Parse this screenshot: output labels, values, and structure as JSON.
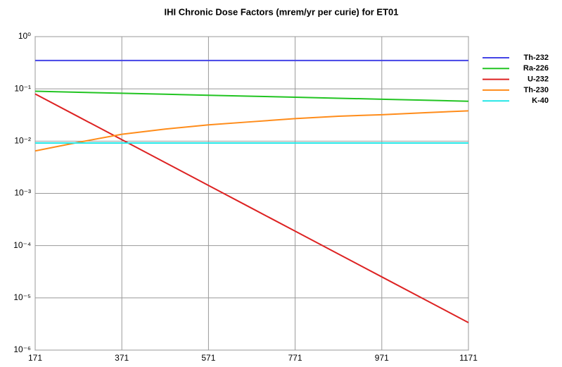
{
  "chart_data": {
    "type": "line",
    "title": "IHI Chronic Dose Factors (mrem/yr per curie) for ET01",
    "x": [
      171,
      271,
      371,
      471,
      571,
      671,
      771,
      871,
      971,
      1071,
      1171
    ],
    "series": [
      {
        "name": "Th-232",
        "color": "#4444e6",
        "values": [
          0.35,
          0.35,
          0.35,
          0.35,
          0.35,
          0.35,
          0.35,
          0.35,
          0.35,
          0.35,
          0.35
        ]
      },
      {
        "name": "Ra-226",
        "color": "#22c422",
        "values": [
          0.09,
          0.0861,
          0.0824,
          0.0789,
          0.0755,
          0.0723,
          0.0692,
          0.0662,
          0.0634,
          0.0606,
          0.058
        ]
      },
      {
        "name": "U-232",
        "color": "#dd2222",
        "values": [
          0.08,
          0.0292,
          0.01066,
          0.00389,
          0.00142,
          0.000518,
          0.000189,
          6.9e-05,
          2.52e-05,
          9.2e-06,
          3.36e-06
        ]
      },
      {
        "name": "Th-230",
        "color": "#ff8c1a",
        "values": [
          0.0065,
          0.0095,
          0.0135,
          0.017,
          0.0205,
          0.0235,
          0.027,
          0.03,
          0.032,
          0.035,
          0.038
        ]
      },
      {
        "name": "K-40",
        "color": "#22e6e6",
        "values": [
          0.0092,
          0.0092,
          0.0092,
          0.0092,
          0.0092,
          0.0092,
          0.0092,
          0.0092,
          0.0092,
          0.0092,
          0.0092
        ]
      }
    ],
    "xlim": [
      171,
      1171
    ],
    "xticks": [
      171,
      371,
      571,
      771,
      971,
      1171
    ],
    "ylim": [
      1e-06,
      1
    ],
    "yticks": [
      {
        "value": 1,
        "label": "10⁰"
      },
      {
        "value": 0.1,
        "label": "10⁻¹"
      },
      {
        "value": 0.01,
        "label": "10⁻²"
      },
      {
        "value": 0.001,
        "label": "10⁻³"
      },
      {
        "value": 0.0001,
        "label": "10⁻⁴"
      },
      {
        "value": 1e-05,
        "label": "10⁻⁵"
      },
      {
        "value": 1e-06,
        "label": "10⁻⁶"
      }
    ],
    "ylog": true,
    "grid": true,
    "legend": "right"
  }
}
